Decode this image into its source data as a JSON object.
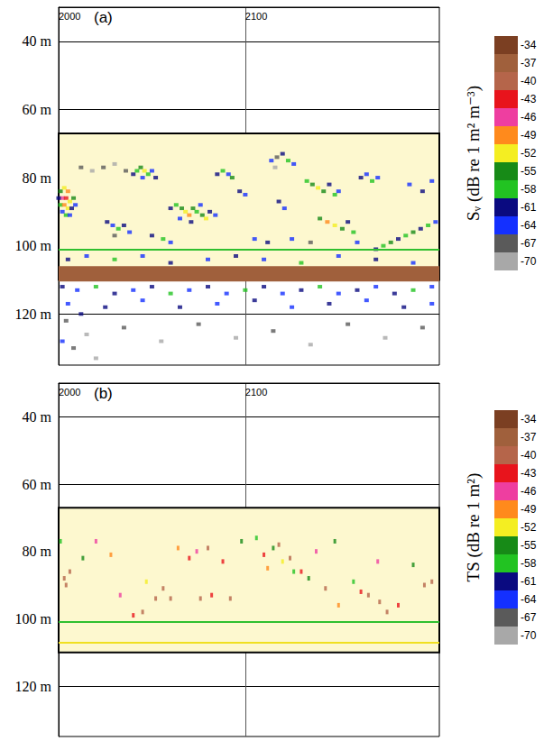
{
  "chart_data": [
    {
      "type": "scatter",
      "label": "(a)",
      "xlim": [
        2000,
        2204
      ],
      "xticks": [
        2000,
        2100
      ],
      "ylim": [
        30,
        135
      ],
      "yticks": [
        {
          "value": 40,
          "label": "40 m"
        },
        {
          "value": 60,
          "label": "60 m"
        },
        {
          "value": 80,
          "label": "80 m"
        },
        {
          "value": 100,
          "label": "100 m"
        },
        {
          "value": 120,
          "label": "120 m"
        }
      ],
      "grid": true,
      "layer": [
        67,
        110
      ],
      "bands": [
        {
          "ylim": [
            106,
            110.5
          ],
          "value": -37
        }
      ],
      "lines": [
        {
          "depth": 101,
          "color": "#2fbf2f"
        }
      ],
      "values": [
        [
          2001,
          84,
          -55
        ],
        [
          2003,
          83,
          -52
        ],
        [
          2005,
          84,
          -49
        ],
        [
          2002,
          86,
          -46
        ],
        [
          2004,
          86,
          -43
        ],
        [
          2006,
          87,
          -52
        ],
        [
          2008,
          86,
          -55
        ],
        [
          2001,
          88,
          -58
        ],
        [
          2003,
          88,
          -49
        ],
        [
          2005,
          89,
          -52
        ],
        [
          2007,
          89,
          -61
        ],
        [
          2002,
          90,
          -64
        ],
        [
          2004,
          91,
          -58
        ],
        [
          2006,
          91,
          -64
        ],
        [
          2009,
          88,
          -64
        ],
        [
          2000,
          86,
          -61
        ],
        [
          2012,
          77,
          -67
        ],
        [
          2018,
          78,
          -70
        ],
        [
          2024,
          77,
          -67
        ],
        [
          2030,
          76,
          -70
        ],
        [
          2036,
          78,
          -67
        ],
        [
          2040,
          79,
          -61
        ],
        [
          2042,
          78,
          -58
        ],
        [
          2044,
          77,
          -55
        ],
        [
          2046,
          78,
          -52
        ],
        [
          2048,
          79,
          -58
        ],
        [
          2050,
          78,
          -64
        ],
        [
          2052,
          80,
          -61
        ],
        [
          2045,
          80,
          -64
        ],
        [
          2026,
          93,
          -61
        ],
        [
          2029,
          94,
          -64
        ],
        [
          2032,
          95,
          -58
        ],
        [
          2035,
          94,
          -61
        ],
        [
          2038,
          96,
          -64
        ],
        [
          2030,
          97,
          -67
        ],
        [
          2060,
          89,
          -61
        ],
        [
          2063,
          88,
          -58
        ],
        [
          2066,
          89,
          -55
        ],
        [
          2068,
          90,
          -52
        ],
        [
          2070,
          91,
          -49
        ],
        [
          2072,
          89,
          -55
        ],
        [
          2074,
          90,
          -58
        ],
        [
          2077,
          91,
          -55
        ],
        [
          2079,
          92,
          -52
        ],
        [
          2081,
          90,
          -61
        ],
        [
          2084,
          91,
          -64
        ],
        [
          2065,
          92,
          -64
        ],
        [
          2071,
          93,
          -61
        ],
        [
          2076,
          88,
          -64
        ],
        [
          2050,
          97,
          -61
        ],
        [
          2056,
          98,
          -58
        ],
        [
          2060,
          99,
          -64
        ],
        [
          2085,
          79,
          -61
        ],
        [
          2088,
          78,
          -58
        ],
        [
          2091,
          79,
          -64
        ],
        [
          2093,
          80,
          -55
        ],
        [
          2097,
          84,
          -61
        ],
        [
          2100,
          85,
          -64
        ],
        [
          2114,
          75,
          -64
        ],
        [
          2117,
          74,
          -67
        ],
        [
          2120,
          73,
          -61
        ],
        [
          2123,
          75,
          -58
        ],
        [
          2126,
          76,
          -64
        ],
        [
          2116,
          77,
          -70
        ],
        [
          2118,
          87,
          -61
        ],
        [
          2121,
          89,
          -64
        ],
        [
          2133,
          81,
          -58
        ],
        [
          2136,
          82,
          -55
        ],
        [
          2139,
          83,
          -52
        ],
        [
          2142,
          84,
          -55
        ],
        [
          2145,
          82,
          -61
        ],
        [
          2148,
          85,
          -58
        ],
        [
          2150,
          84,
          -64
        ],
        [
          2140,
          92,
          -55
        ],
        [
          2144,
          93,
          -49
        ],
        [
          2148,
          94,
          -52
        ],
        [
          2152,
          95,
          -55
        ],
        [
          2155,
          93,
          -61
        ],
        [
          2158,
          96,
          -58
        ],
        [
          2162,
          80,
          -61
        ],
        [
          2165,
          79,
          -64
        ],
        [
          2168,
          81,
          -58
        ],
        [
          2171,
          80,
          -64
        ],
        [
          2170,
          101,
          -61
        ],
        [
          2174,
          100,
          -58
        ],
        [
          2178,
          99,
          -55
        ],
        [
          2182,
          98,
          -61
        ],
        [
          2186,
          97,
          -58
        ],
        [
          2190,
          96,
          -55
        ],
        [
          2194,
          95,
          -61
        ],
        [
          2198,
          94,
          -58
        ],
        [
          2202,
          93,
          -64
        ],
        [
          2188,
          82,
          -64
        ],
        [
          2195,
          84,
          -61
        ],
        [
          2200,
          81,
          -64
        ],
        [
          2105,
          98,
          -64
        ],
        [
          2112,
          99,
          -61
        ],
        [
          2125,
          98,
          -64
        ],
        [
          2135,
          99,
          -67
        ],
        [
          2160,
          99,
          -64
        ],
        [
          2005,
          104,
          -61
        ],
        [
          2015,
          103,
          -64
        ],
        [
          2030,
          104,
          -58
        ],
        [
          2045,
          103,
          -64
        ],
        [
          2060,
          105,
          -61
        ],
        [
          2080,
          104,
          -64
        ],
        [
          2095,
          103,
          -61
        ],
        [
          2110,
          104,
          -64
        ],
        [
          2130,
          105,
          -58
        ],
        [
          2150,
          103,
          -64
        ],
        [
          2170,
          104,
          -61
        ],
        [
          2190,
          105,
          -64
        ],
        [
          2002,
          112,
          -61
        ],
        [
          2010,
          113,
          -64
        ],
        [
          2020,
          112,
          -58
        ],
        [
          2030,
          114,
          -61
        ],
        [
          2040,
          113,
          -64
        ],
        [
          2050,
          112,
          -61
        ],
        [
          2060,
          114,
          -58
        ],
        [
          2070,
          113,
          -64
        ],
        [
          2080,
          112,
          -61
        ],
        [
          2090,
          114,
          -64
        ],
        [
          2100,
          113,
          -58
        ],
        [
          2110,
          112,
          -61
        ],
        [
          2120,
          114,
          -64
        ],
        [
          2130,
          113,
          -61
        ],
        [
          2140,
          112,
          -58
        ],
        [
          2150,
          114,
          -64
        ],
        [
          2160,
          113,
          -61
        ],
        [
          2170,
          112,
          -64
        ],
        [
          2180,
          114,
          -61
        ],
        [
          2190,
          113,
          -58
        ],
        [
          2200,
          112,
          -64
        ],
        [
          2005,
          117,
          -64
        ],
        [
          2025,
          118,
          -61
        ],
        [
          2045,
          116,
          -64
        ],
        [
          2065,
          118,
          -61
        ],
        [
          2085,
          117,
          -64
        ],
        [
          2105,
          116,
          -61
        ],
        [
          2125,
          118,
          -64
        ],
        [
          2145,
          117,
          -61
        ],
        [
          2165,
          116,
          -64
        ],
        [
          2185,
          118,
          -61
        ],
        [
          2200,
          117,
          -64
        ],
        [
          2004,
          122,
          -67
        ],
        [
          2015,
          126,
          -70
        ],
        [
          2008,
          130,
          -67
        ],
        [
          2020,
          133,
          -70
        ],
        [
          2035,
          124,
          -67
        ],
        [
          2055,
          128,
          -70
        ],
        [
          2075,
          123,
          -67
        ],
        [
          2095,
          127,
          -70
        ],
        [
          2115,
          125,
          -67
        ],
        [
          2135,
          129,
          -70
        ],
        [
          2155,
          123,
          -67
        ],
        [
          2175,
          127,
          -70
        ],
        [
          2195,
          124,
          -67
        ],
        [
          2012,
          120,
          -61
        ],
        [
          2002,
          128,
          -64
        ]
      ],
      "colorbar": {
        "title": "Sᵥ (dB re 1 m² m⁻³)",
        "range": [
          -71.5,
          -32.5
        ],
        "ticks": [
          -34,
          -37,
          -40,
          -43,
          -46,
          -49,
          -52,
          -55,
          -58,
          -61,
          -64,
          -67,
          -70
        ],
        "colors": [
          "#7b3f22",
          "#a0603c",
          "#b5654a",
          "#e8141c",
          "#ee3ea0",
          "#ff8a1c",
          "#f4ee22",
          "#178a17",
          "#22c322",
          "#0a0a80",
          "#1430ff",
          "#5a5a5a",
          "#a8a8a8"
        ]
      }
    },
    {
      "type": "scatter",
      "label": "(b)",
      "xlim": [
        2000,
        2204
      ],
      "xticks": [
        2000,
        2100
      ],
      "ylim": [
        30,
        135
      ],
      "yticks": [
        {
          "value": 40,
          "label": "40 m"
        },
        {
          "value": 60,
          "label": "60 m"
        },
        {
          "value": 80,
          "label": "80 m"
        },
        {
          "value": 100,
          "label": "100 m"
        },
        {
          "value": 120,
          "label": "120 m"
        }
      ],
      "grid": true,
      "layer": [
        67,
        110
      ],
      "bands": [],
      "lines": [
        {
          "depth": 101,
          "color": "#2fbf2f"
        },
        {
          "depth": 107,
          "color": "#f0e020"
        }
      ],
      "values": [
        [
          2001,
          77,
          -58
        ],
        [
          2003,
          88,
          -40
        ],
        [
          2006,
          86,
          -40
        ],
        [
          2004,
          90,
          -40
        ],
        [
          2013,
          82,
          -55
        ],
        [
          2020,
          77,
          -46
        ],
        [
          2028,
          81,
          -49
        ],
        [
          2033,
          93,
          -46
        ],
        [
          2040,
          99,
          -43
        ],
        [
          2045,
          98,
          -40
        ],
        [
          2047,
          89,
          -52
        ],
        [
          2052,
          94,
          -40
        ],
        [
          2056,
          91,
          -40
        ],
        [
          2060,
          94,
          -40
        ],
        [
          2064,
          79,
          -49
        ],
        [
          2070,
          82,
          -43
        ],
        [
          2074,
          80,
          -46
        ],
        [
          2076,
          94,
          -40
        ],
        [
          2080,
          79,
          -40
        ],
        [
          2082,
          93,
          -43
        ],
        [
          2088,
          83,
          -43
        ],
        [
          2092,
          94,
          -40
        ],
        [
          2098,
          77,
          -55
        ],
        [
          2106,
          76,
          -58
        ],
        [
          2110,
          81,
          -43
        ],
        [
          2112,
          85,
          -49
        ],
        [
          2115,
          79,
          -55
        ],
        [
          2118,
          78,
          -40
        ],
        [
          2120,
          83,
          -52
        ],
        [
          2124,
          82,
          -40
        ],
        [
          2126,
          86,
          -58
        ],
        [
          2130,
          86,
          -43
        ],
        [
          2134,
          88,
          -55
        ],
        [
          2138,
          80,
          -46
        ],
        [
          2143,
          91,
          -40
        ],
        [
          2148,
          77,
          -55
        ],
        [
          2158,
          89,
          -58
        ],
        [
          2162,
          92,
          -43
        ],
        [
          2166,
          93,
          -40
        ],
        [
          2172,
          95,
          -40
        ],
        [
          2176,
          98,
          -40
        ],
        [
          2182,
          96,
          -43
        ],
        [
          2190,
          84,
          -55
        ],
        [
          2196,
          90,
          -40
        ],
        [
          2200,
          89,
          -40
        ],
        [
          2171,
          83,
          -46
        ],
        [
          2150,
          96,
          -49
        ]
      ],
      "colorbar": {
        "title": "TS (dB re 1 m²)",
        "range": [
          -71.5,
          -32.5
        ],
        "ticks": [
          -34,
          -37,
          -40,
          -43,
          -46,
          -49,
          -52,
          -55,
          -58,
          -61,
          -64,
          -67,
          -70
        ],
        "colors": [
          "#7b3f22",
          "#a0603c",
          "#b5654a",
          "#e8141c",
          "#ee3ea0",
          "#ff8a1c",
          "#f4ee22",
          "#178a17",
          "#22c322",
          "#0a0a80",
          "#1430ff",
          "#5a5a5a",
          "#a8a8a8"
        ]
      }
    }
  ]
}
